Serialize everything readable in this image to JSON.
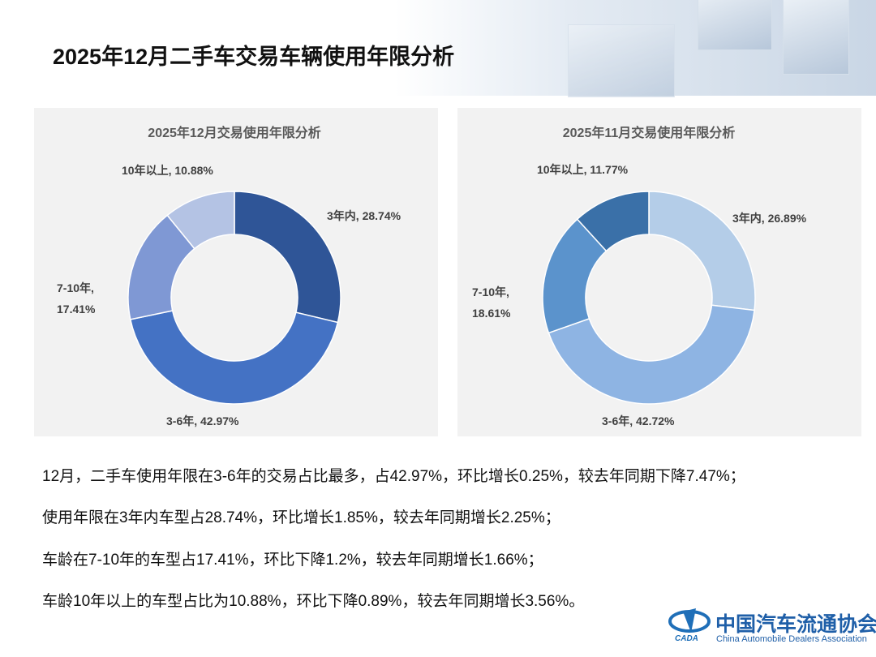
{
  "title": "2025年12月二手车交易车辆使用年限分析",
  "chart_data": [
    {
      "type": "donut",
      "title": "2025年12月交易使用年限分析",
      "values": [
        28.74,
        42.97,
        17.41,
        10.88
      ],
      "value_labels": [
        "3年内, 28.74%",
        "3-6年, 42.97%",
        "7-10年, 17.41%",
        "10年以上, 10.88%"
      ],
      "colors": [
        "#2f5597",
        "#4472c4",
        "#7f98d4",
        "#b4c3e4"
      ]
    },
    {
      "type": "donut",
      "title": "2025年11月交易使用年限分析",
      "values": [
        26.89,
        42.72,
        18.61,
        11.77
      ],
      "value_labels": [
        "3年内, 26.89%",
        "3-6年, 42.72%",
        "7-10年, 18.61%",
        "10年以上, 11.77%"
      ],
      "colors": [
        "#b4cde8",
        "#8eb4e3",
        "#5b93cc",
        "#3a70a8"
      ]
    }
  ],
  "paragraphs": [
    "12月，二手车使用年限在3-6年的交易占比最多，占42.97%，环比增长0.25%，较去年同期下降7.47%；",
    "使用年限在3年内车型占28.74%，环比增长1.85%，较去年同期增长2.25%；",
    "车龄在7-10年的车型占17.41%，环比下降1.2%，较去年同期增长1.66%；",
    "车龄10年以上的车型占比为10.88%，环比下降0.89%，较去年同期增长3.56%。"
  ],
  "logo": {
    "mark": "CADA",
    "name": "中国汽车流通协会",
    "name_en": "China Automobile Dealers Association"
  }
}
